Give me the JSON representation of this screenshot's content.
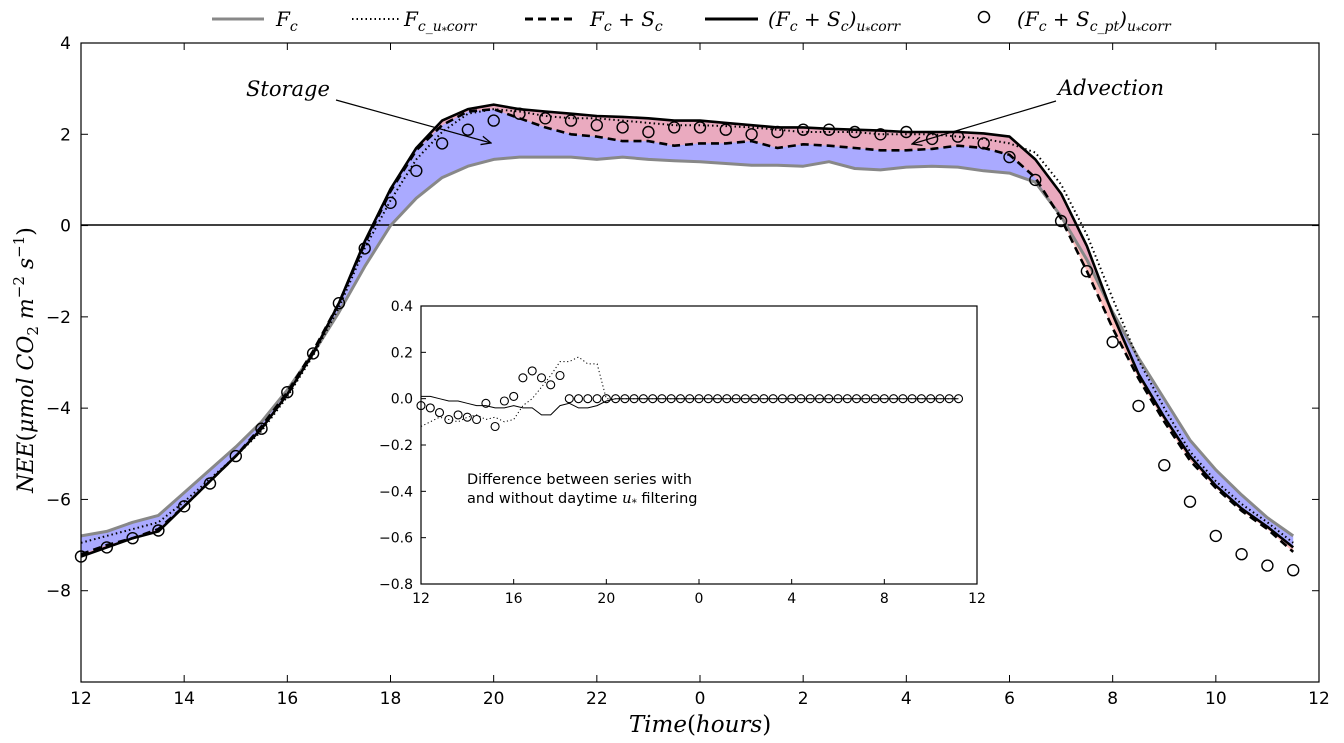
{
  "chart_data": [
    {
      "type": "line",
      "title": "",
      "xlabel": "Time (hours)",
      "ylabel": "NEE (μmol CO₂ m⁻² s⁻¹)",
      "x_ticks": [
        "12",
        "14",
        "16",
        "18",
        "20",
        "22",
        "0",
        "2",
        "4",
        "6",
        "8",
        "10",
        "12"
      ],
      "y_ticks": [
        4,
        2,
        0,
        -2,
        -4,
        -6,
        -8
      ],
      "xlim": [
        12,
        36
      ],
      "ylim": [
        -10,
        4
      ],
      "legend_position": "top (above plot)",
      "annotations": [
        "Storage",
        "Advection"
      ],
      "fill_colors": {
        "storage": "#aaaaff",
        "advection": "#ffaaaa",
        "overlap": "#c47a9e"
      },
      "x": [
        12,
        12.5,
        13,
        13.5,
        14,
        14.5,
        15,
        15.5,
        16,
        16.5,
        17,
        17.5,
        18,
        18.5,
        19,
        19.5,
        20,
        20.5,
        21,
        21.5,
        22,
        22.5,
        23,
        23.5,
        24,
        24.5,
        25,
        25.5,
        26,
        26.5,
        27,
        27.5,
        28,
        28.5,
        29,
        29.5,
        30,
        30.5,
        31,
        31.5,
        32,
        32.5,
        33,
        33.5,
        34,
        34.5,
        35,
        35.5
      ],
      "series": [
        {
          "name": "F_c",
          "color": "#888888",
          "style": "solid",
          "values": [
            -6.8,
            -6.7,
            -6.5,
            -6.35,
            -5.85,
            -5.35,
            -4.85,
            -4.3,
            -3.6,
            -2.8,
            -1.9,
            -0.9,
            0.0,
            0.6,
            1.05,
            1.3,
            1.45,
            1.5,
            1.5,
            1.5,
            1.45,
            1.5,
            1.45,
            1.42,
            1.4,
            1.36,
            1.32,
            1.32,
            1.3,
            1.4,
            1.25,
            1.22,
            1.28,
            1.3,
            1.28,
            1.2,
            1.15,
            0.95,
            0.2,
            -0.75,
            -1.9,
            -2.9,
            -3.8,
            -4.7,
            -5.35,
            -5.9,
            -6.4,
            -6.8
          ]
        },
        {
          "name": "F_c_u*corr",
          "color": "#000000",
          "style": "dotted",
          "values": [
            -6.95,
            -6.8,
            -6.65,
            -6.5,
            -6.05,
            -5.55,
            -5.05,
            -4.5,
            -3.75,
            -2.85,
            -1.8,
            -0.5,
            0.55,
            1.45,
            2.05,
            2.45,
            2.55,
            2.5,
            2.4,
            2.35,
            2.35,
            2.3,
            2.25,
            2.2,
            2.2,
            2.18,
            2.15,
            2.1,
            2.05,
            2.05,
            2.05,
            2.0,
            2.0,
            2.0,
            1.95,
            1.9,
            1.8,
            1.6,
            0.9,
            -0.2,
            -1.6,
            -2.95,
            -4.0,
            -4.95,
            -5.6,
            -6.1,
            -6.5,
            -6.95
          ]
        },
        {
          "name": "F_c + S_c",
          "color": "#000000",
          "style": "dashed",
          "values": [
            -7.2,
            -7.0,
            -6.85,
            -6.65,
            -6.15,
            -5.6,
            -5.05,
            -4.4,
            -3.65,
            -2.75,
            -1.7,
            -0.4,
            0.75,
            1.65,
            2.2,
            2.5,
            2.55,
            2.35,
            2.15,
            2.0,
            1.95,
            1.85,
            1.85,
            1.75,
            1.8,
            1.8,
            1.85,
            1.7,
            1.78,
            1.75,
            1.7,
            1.65,
            1.65,
            1.68,
            1.75,
            1.7,
            1.55,
            1.05,
            0.15,
            -1.0,
            -2.25,
            -3.35,
            -4.3,
            -5.15,
            -5.75,
            -6.25,
            -6.65,
            -7.15
          ]
        },
        {
          "name": "(F_c + S_c)_u*corr",
          "color": "#000000",
          "style": "solid",
          "values": [
            -7.25,
            -7.05,
            -6.85,
            -6.7,
            -6.15,
            -5.6,
            -5.05,
            -4.45,
            -3.7,
            -2.8,
            -1.7,
            -0.35,
            0.8,
            1.7,
            2.3,
            2.55,
            2.65,
            2.55,
            2.5,
            2.45,
            2.4,
            2.38,
            2.35,
            2.3,
            2.3,
            2.25,
            2.2,
            2.15,
            2.15,
            2.12,
            2.1,
            2.08,
            2.05,
            2.05,
            2.05,
            2.02,
            1.95,
            1.45,
            0.7,
            -0.45,
            -1.95,
            -3.25,
            -4.2,
            -5.05,
            -5.7,
            -6.2,
            -6.6,
            -7.05
          ]
        },
        {
          "name": "(F_c + S_c_pt)_u*corr",
          "color": "#000000",
          "style": "markers",
          "values": [
            -7.25,
            -7.05,
            -6.85,
            -6.68,
            -6.15,
            -5.65,
            -5.05,
            -4.45,
            -3.65,
            -2.8,
            -1.7,
            -0.5,
            0.5,
            1.2,
            1.8,
            2.1,
            2.3,
            2.45,
            2.35,
            2.3,
            2.2,
            2.15,
            2.05,
            2.15,
            2.15,
            2.1,
            2.0,
            2.05,
            2.1,
            2.1,
            2.05,
            2.0,
            2.05,
            1.9,
            1.95,
            1.8,
            1.5,
            1.0,
            0.1,
            -1.0,
            -2.55,
            -3.95,
            -5.25,
            -6.05,
            -6.8,
            -7.2,
            -7.45,
            -7.55
          ]
        }
      ],
      "legend": [
        {
          "label": "F_c",
          "style": "solid-gray"
        },
        {
          "label": "F_c_u*corr",
          "style": "dotted"
        },
        {
          "label": "F_c + S_c",
          "style": "dashed"
        },
        {
          "label": "(F_c + S_c)_u*corr",
          "style": "solid"
        },
        {
          "label": "(F_c + S_c_pt)_u*corr",
          "style": "circle"
        }
      ]
    },
    {
      "type": "line",
      "title": "",
      "note": "Difference between series with and without daytime u* filtering",
      "x_ticks": [
        "12",
        "16",
        "20",
        "0",
        "4",
        "8",
        "12"
      ],
      "y_ticks": [
        0.4,
        0.2,
        0.0,
        -0.2,
        -0.4,
        -0.6,
        -0.8
      ],
      "xlim": [
        12,
        36
      ],
      "ylim": [
        -0.8,
        0.4
      ],
      "x": [
        12,
        12.4,
        12.8,
        13.2,
        13.6,
        14,
        14.4,
        14.8,
        15.2,
        15.6,
        16,
        16.4,
        16.8,
        17.2,
        17.6,
        18,
        18.4,
        18.8,
        19.2,
        19.6,
        20,
        20.4,
        20.8,
        21.2,
        21.6,
        22,
        22.4,
        22.8,
        23.2,
        23.6,
        24,
        24.4,
        24.8,
        25.2,
        25.6,
        26,
        26.4,
        26.8,
        27.2,
        27.6,
        28,
        28.4,
        28.8,
        29.2,
        29.6,
        30,
        30.4,
        30.8,
        31.2,
        31.6,
        32,
        32.4,
        32.8,
        33.2,
        33.6,
        34,
        34.4,
        34.8,
        35.2
      ],
      "series": [
        {
          "name": "",
          "style": "solid",
          "values": [
            0.01,
            0.01,
            0.0,
            -0.01,
            -0.01,
            -0.02,
            -0.03,
            -0.03,
            -0.04,
            -0.04,
            -0.03,
            -0.04,
            -0.04,
            -0.07,
            -0.07,
            -0.03,
            -0.02,
            -0.04,
            -0.04,
            -0.03,
            -0.01,
            0.0,
            0.0,
            0.0,
            0.0,
            0.0,
            0.0,
            0.0,
            0.0,
            0.0,
            0.0,
            0.0,
            0.0,
            0.0,
            0.0,
            0.0,
            0.0,
            0.0,
            0.0,
            0.0,
            0.0,
            0.0,
            0.0,
            0.0,
            0.0,
            0.0,
            0.0,
            0.0,
            0.0,
            0.0,
            0.0,
            0.0,
            0.0,
            0.0,
            0.0,
            0.0,
            0.0,
            0.0,
            0.0
          ]
        },
        {
          "name": "",
          "style": "dotted",
          "values": [
            -0.12,
            -0.1,
            -0.08,
            -0.09,
            -0.1,
            -0.08,
            -0.07,
            -0.09,
            -0.08,
            -0.1,
            -0.09,
            -0.03,
            0.0,
            0.05,
            0.1,
            0.16,
            0.16,
            0.18,
            0.15,
            0.15,
            0.0,
            0.0,
            0.0,
            0.0,
            0.0,
            0.0,
            0.0,
            0.0,
            0.0,
            0.0,
            0.0,
            0.0,
            0.0,
            0.0,
            0.0,
            0.0,
            0.0,
            0.0,
            0.0,
            0.0,
            0.0,
            0.0,
            0.0,
            0.0,
            0.0,
            0.0,
            0.0,
            0.0,
            0.0,
            0.0,
            0.0,
            0.0,
            0.0,
            0.0,
            0.0,
            0.0,
            0.0,
            0.0,
            0.0
          ]
        },
        {
          "name": "",
          "style": "markers",
          "values": [
            -0.03,
            -0.04,
            -0.06,
            -0.09,
            -0.07,
            -0.08,
            -0.09,
            -0.02,
            -0.12,
            -0.01,
            0.01,
            0.09,
            0.12,
            0.09,
            0.06,
            0.1,
            0.0,
            0.0,
            0.0,
            0.0,
            0.0,
            0.0,
            0.0,
            0.0,
            0.0,
            0.0,
            0.0,
            0.0,
            0.0,
            0.0,
            0.0,
            0.0,
            0.0,
            0.0,
            0.0,
            0.0,
            0.0,
            0.0,
            0.0,
            0.0,
            0.0,
            0.0,
            0.0,
            0.0,
            0.0,
            0.0,
            0.0,
            0.0,
            0.0,
            0.0,
            0.0,
            0.0,
            0.0,
            0.0,
            0.0,
            0.0,
            0.0,
            0.0,
            0.0
          ]
        }
      ]
    }
  ],
  "labels": {
    "storage": "Storage",
    "advection": "Advection",
    "note_line1": "Difference between series with",
    "note_line2a": "and without daytime ",
    "note_line2b": " filtering"
  }
}
